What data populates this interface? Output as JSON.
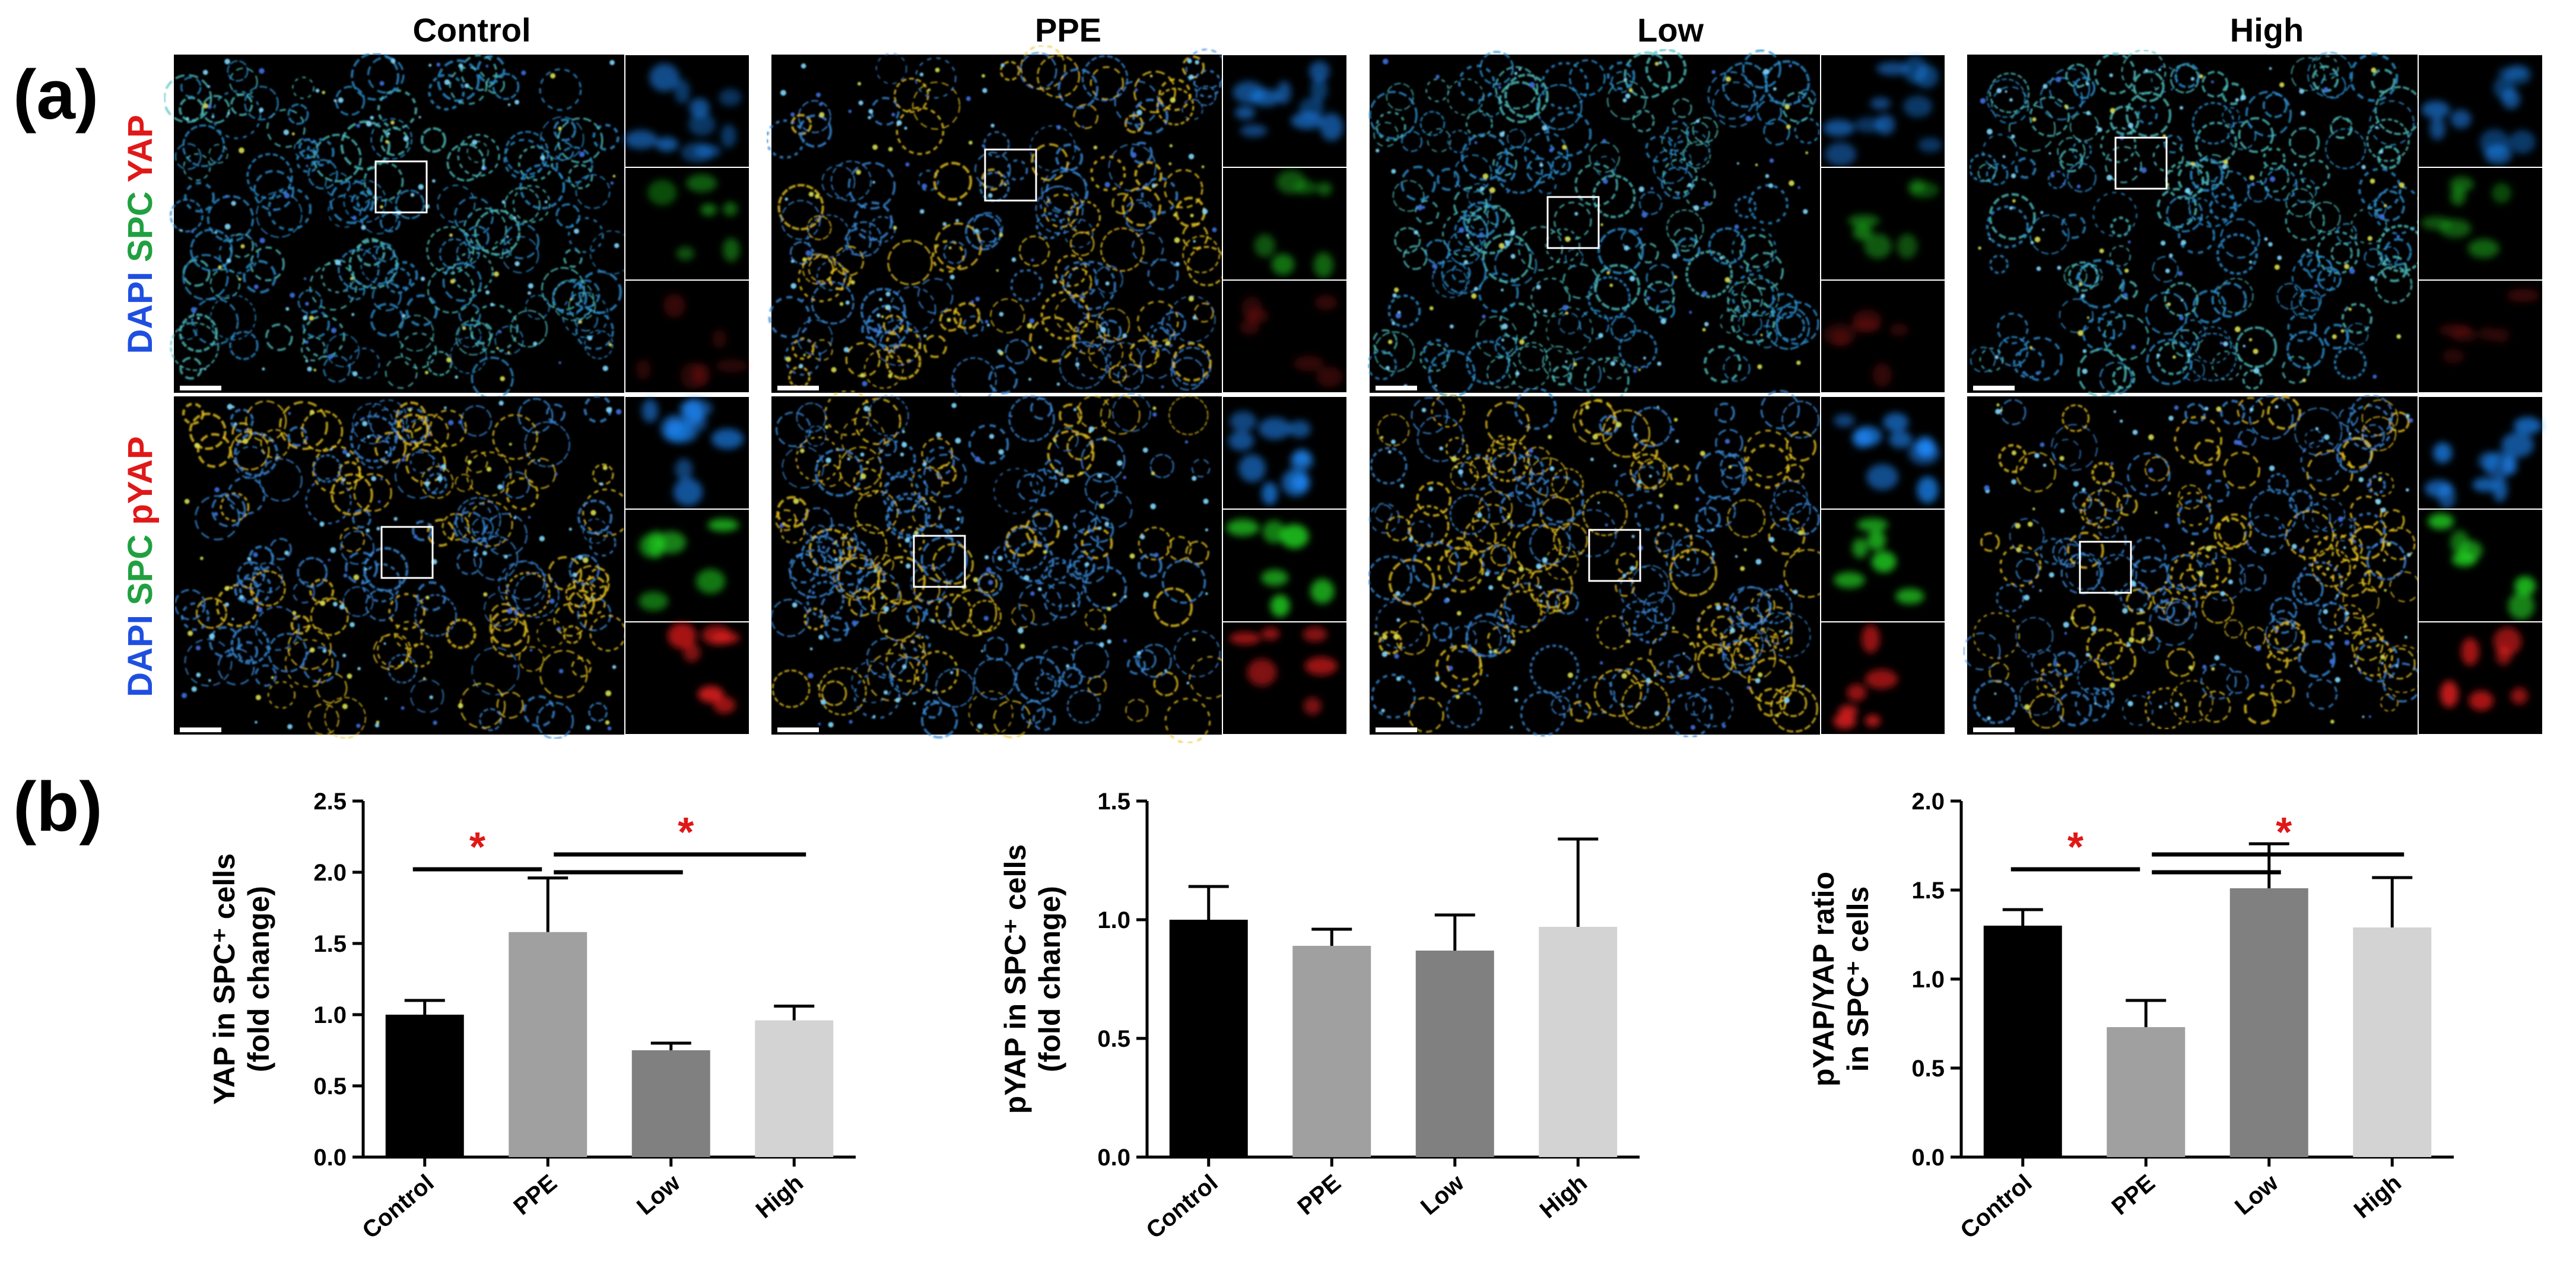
{
  "panel_labels": {
    "a": "(a)",
    "b": "(b)"
  },
  "micrographs": {
    "group_headers": [
      "Control",
      "PPE",
      "Low",
      "High"
    ],
    "rows": [
      {
        "stain": [
          {
            "text": "DAPI",
            "color": "#1f4fe0"
          },
          {
            "text": "SPC",
            "color": "#20a040"
          },
          {
            "text": "YAP",
            "color": "#e01818"
          }
        ],
        "inset_intensity": [
          0.6,
          0.55,
          0.25
        ]
      },
      {
        "stain": [
          {
            "text": "DAPI",
            "color": "#1f4fe0"
          },
          {
            "text": "SPC",
            "color": "#20a040"
          },
          {
            "text": "pYAP",
            "color": "#e01818"
          }
        ],
        "inset_intensity": [
          0.75,
          0.85,
          0.9
        ]
      }
    ],
    "channel_colors": {
      "dapi": "#1e8cff",
      "spc": "#22d222",
      "yap": "#e61e1e",
      "tissue": "#e6c21e"
    }
  },
  "chart_data": [
    {
      "type": "bar",
      "categories": [
        "Control",
        "PPE",
        "Low",
        "High"
      ],
      "values": [
        1.0,
        1.58,
        0.75,
        0.96
      ],
      "errors": [
        0.1,
        0.38,
        0.05,
        0.1
      ],
      "bar_colors": [
        "#000000",
        "#a0a0a0",
        "#808080",
        "#d3d3d3"
      ],
      "ylabel_lines": [
        "YAP in SPC⁺ cells",
        "(fold change)"
      ],
      "ylim": [
        0,
        2.5
      ],
      "yticks": [
        "0.0",
        "0.5",
        "1.0",
        "1.5",
        "2.0",
        "2.5"
      ],
      "significance": [
        {
          "from": 0,
          "to": 1,
          "label": "*"
        },
        {
          "from": 1,
          "to": [
            2,
            3
          ],
          "label": "*"
        }
      ]
    },
    {
      "type": "bar",
      "categories": [
        "Control",
        "PPE",
        "Low",
        "High"
      ],
      "values": [
        1.0,
        0.89,
        0.87,
        0.97
      ],
      "errors": [
        0.14,
        0.07,
        0.15,
        0.37
      ],
      "bar_colors": [
        "#000000",
        "#a0a0a0",
        "#808080",
        "#d3d3d3"
      ],
      "ylabel_lines": [
        "pYAP in SPC⁺ cells",
        "(fold change)"
      ],
      "ylim": [
        0,
        1.5
      ],
      "yticks": [
        "0.0",
        "0.5",
        "1.0",
        "1.5"
      ],
      "significance": []
    },
    {
      "type": "bar",
      "categories": [
        "Control",
        "PPE",
        "Low",
        "High"
      ],
      "values": [
        1.3,
        0.73,
        1.51,
        1.29
      ],
      "errors": [
        0.09,
        0.15,
        0.25,
        0.28
      ],
      "bar_colors": [
        "#000000",
        "#a0a0a0",
        "#808080",
        "#d3d3d3"
      ],
      "ylabel_lines": [
        "pYAP/YAP ratio",
        "in SPC⁺ cells"
      ],
      "ylim": [
        0,
        2.0
      ],
      "yticks": [
        "0.0",
        "0.5",
        "1.0",
        "1.5",
        "2.0"
      ],
      "significance": [
        {
          "from": 0,
          "to": 1,
          "label": "*"
        },
        {
          "from": 1,
          "to": [
            2,
            3
          ],
          "label": "*"
        }
      ]
    }
  ]
}
